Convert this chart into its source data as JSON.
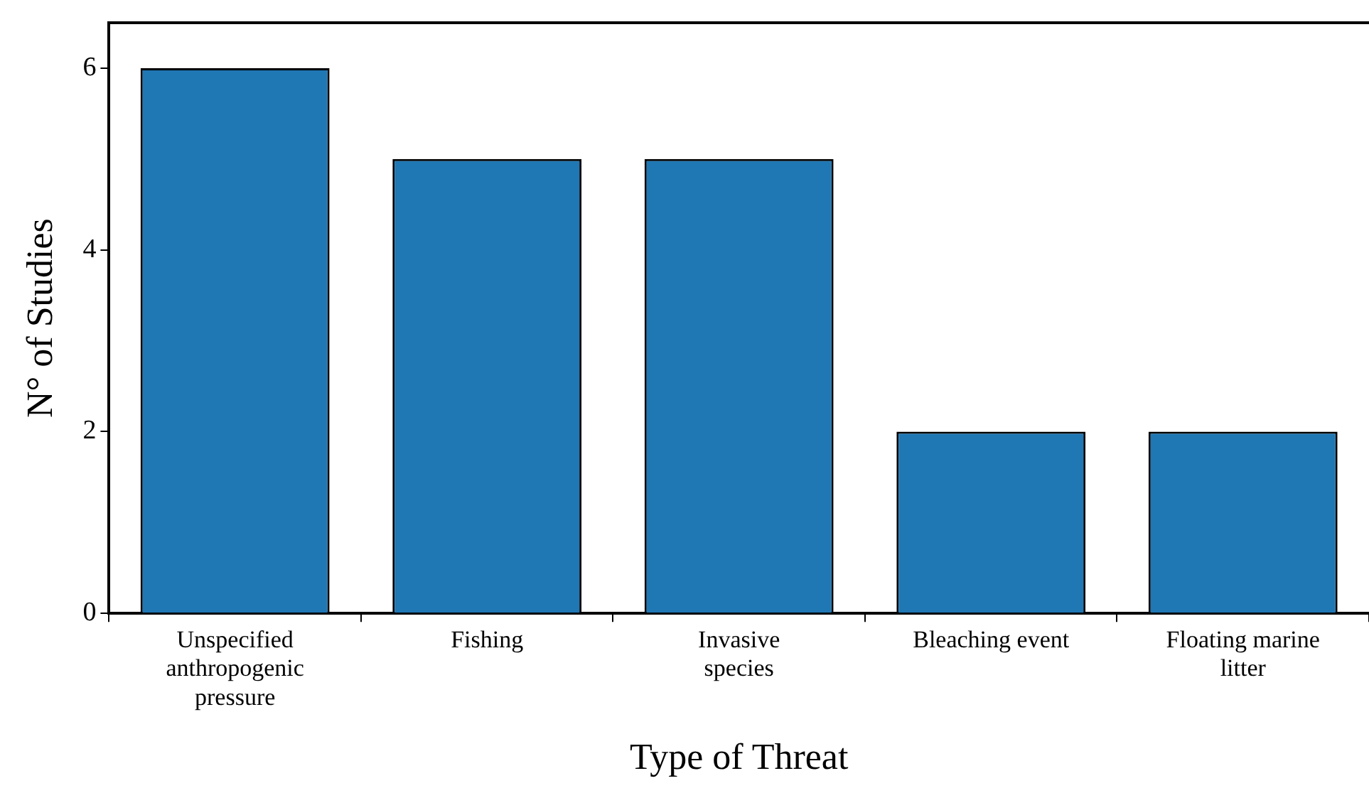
{
  "chart_data": {
    "type": "bar",
    "xlabel": "Type of Threat",
    "ylabel": "N° of Studies",
    "categories": [
      "Unspecified anthropogenic pressure",
      "Fishing",
      "Invasive species",
      "Bleaching event",
      "Floating marine litter"
    ],
    "values": [
      6,
      5,
      5,
      2,
      2
    ],
    "color": "#1f77b4",
    "ylim": [
      0,
      6.5
    ],
    "yticks": [
      0,
      2,
      4,
      6
    ],
    "grid": false,
    "legend": false
  }
}
